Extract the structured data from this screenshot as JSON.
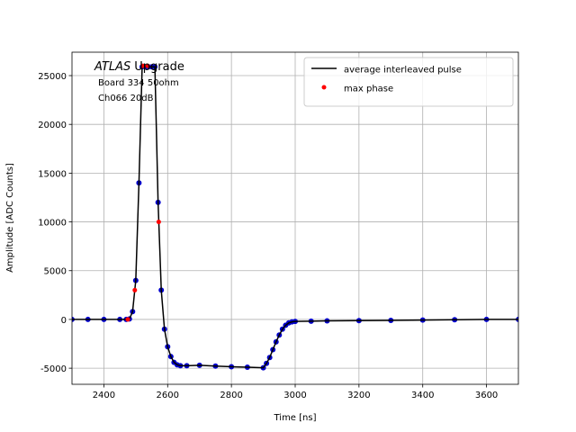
{
  "chart_data": {
    "type": "line",
    "xlabel": "Time [ns]",
    "ylabel": "Amplitude [ADC Counts]",
    "annotation": [
      "ATLAS",
      "Upgrade",
      "Board 334 50ohm",
      "Ch066 20dB"
    ],
    "xlim": [
      2300,
      3700
    ],
    "xticks": [
      2400,
      2600,
      2800,
      3000,
      3200,
      3400,
      3600
    ],
    "ylim": [
      -6650,
      27400
    ],
    "yticks": [
      -5000,
      0,
      5000,
      10000,
      15000,
      20000,
      25000
    ],
    "grid": true,
    "legend": "upper right",
    "series": [
      {
        "color": "#0000cc",
        "style": "dots",
        "x": [
          2300,
          2350,
          2400,
          2450,
          2470,
          2480,
          2490,
          2500,
          2510,
          2520,
          2530,
          2540,
          2550,
          2560,
          2570,
          2580,
          2590,
          2600,
          2610,
          2620,
          2630,
          2640,
          2660,
          2700,
          2750,
          2800,
          2850,
          2900,
          2910,
          2920,
          2930,
          2940,
          2950,
          2960,
          2970,
          2980,
          2990,
          3000,
          3050,
          3100,
          3200,
          3300,
          3400,
          3500,
          3600,
          3700
        ],
        "values": [
          0,
          0,
          0,
          0,
          0,
          50,
          800,
          4000,
          14000,
          25900,
          25900,
          25900,
          25900,
          25900,
          12000,
          3000,
          -1000,
          -2800,
          -3800,
          -4400,
          -4650,
          -4750,
          -4750,
          -4700,
          -4780,
          -4850,
          -4900,
          -4950,
          -4500,
          -3900,
          -3100,
          -2300,
          -1600,
          -1000,
          -600,
          -350,
          -250,
          -200,
          -180,
          -150,
          -120,
          -100,
          -60,
          -30,
          0,
          0
        ]
      },
      {
        "name": "average interleaved pulse",
        "color": "#000000",
        "style": "line",
        "x": [
          2300,
          2350,
          2400,
          2450,
          2470,
          2480,
          2490,
          2500,
          2510,
          2520,
          2530,
          2540,
          2550,
          2560,
          2570,
          2580,
          2590,
          2600,
          2610,
          2620,
          2630,
          2640,
          2660,
          2700,
          2750,
          2800,
          2850,
          2900,
          2910,
          2920,
          2930,
          2940,
          2950,
          2960,
          2970,
          2980,
          2990,
          3000,
          3050,
          3100,
          3200,
          3300,
          3400,
          3500,
          3600,
          3700
        ],
        "values": [
          0,
          0,
          0,
          0,
          0,
          50,
          800,
          4000,
          14000,
          25900,
          25900,
          25900,
          25900,
          25900,
          12000,
          3000,
          -1000,
          -2800,
          -3800,
          -4400,
          -4650,
          -4750,
          -4750,
          -4700,
          -4780,
          -4850,
          -4900,
          -4950,
          -4500,
          -3900,
          -3100,
          -2300,
          -1600,
          -1000,
          -600,
          -350,
          -250,
          -200,
          -180,
          -150,
          -120,
          -100,
          -60,
          -30,
          0,
          0
        ]
      },
      {
        "name": "max phase",
        "color": "#ff0000",
        "style": "markers",
        "x": [
          2475,
          2497,
          2522,
          2537,
          2572
        ],
        "values": [
          0,
          3000,
          26000,
          26000,
          10000
        ]
      }
    ]
  }
}
